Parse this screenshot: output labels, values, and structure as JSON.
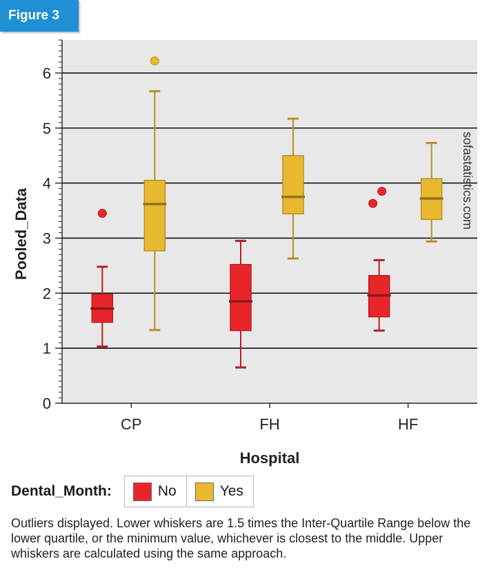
{
  "figure_label": "Figure 3",
  "chart_data": {
    "type": "boxplot",
    "xlabel": "Hospital",
    "ylabel": "Pooled_Data",
    "ylim": [
      0,
      6.6
    ],
    "yticks": [
      0,
      1,
      2,
      3,
      4,
      5,
      6
    ],
    "grid": true,
    "categories": [
      "CP",
      "FH",
      "HF"
    ],
    "watermark": "sofastatistics.com",
    "series": [
      {
        "name": "No",
        "color": "#e8262a",
        "boxes": [
          {
            "category": "CP",
            "whisker_low": 1.03,
            "q1": 1.47,
            "median": 1.72,
            "q3": 1.98,
            "whisker_high": 2.48,
            "outliers": [
              3.45
            ]
          },
          {
            "category": "FH",
            "whisker_low": 0.65,
            "q1": 1.32,
            "median": 1.85,
            "q3": 2.52,
            "whisker_high": 2.95,
            "outliers": []
          },
          {
            "category": "HF",
            "whisker_low": 1.32,
            "q1": 1.57,
            "median": 1.96,
            "q3": 2.32,
            "whisker_high": 2.6,
            "outliers": [
              3.63,
              3.85
            ]
          }
        ]
      },
      {
        "name": "Yes",
        "color": "#e8b92e",
        "boxes": [
          {
            "category": "CP",
            "whisker_low": 1.33,
            "q1": 2.77,
            "median": 3.62,
            "q3": 4.05,
            "whisker_high": 5.67,
            "outliers": [
              6.22
            ]
          },
          {
            "category": "FH",
            "whisker_low": 2.63,
            "q1": 3.44,
            "median": 3.75,
            "q3": 4.5,
            "whisker_high": 5.17,
            "outliers": []
          },
          {
            "category": "HF",
            "whisker_low": 2.94,
            "q1": 3.34,
            "median": 3.72,
            "q3": 4.08,
            "whisker_high": 4.73,
            "outliers": []
          }
        ]
      }
    ]
  },
  "legend": {
    "title": "Dental_Month:",
    "items": [
      {
        "label": "No",
        "color": "#e8262a"
      },
      {
        "label": "Yes",
        "color": "#e8b92e"
      }
    ]
  },
  "footnote": "Outliers displayed. Lower whiskers are 1.5 times the Inter-Quartile Range below the lower quartile, or the minimum value, whichever is closest to the middle. Upper whiskers are calculated using the same approach."
}
